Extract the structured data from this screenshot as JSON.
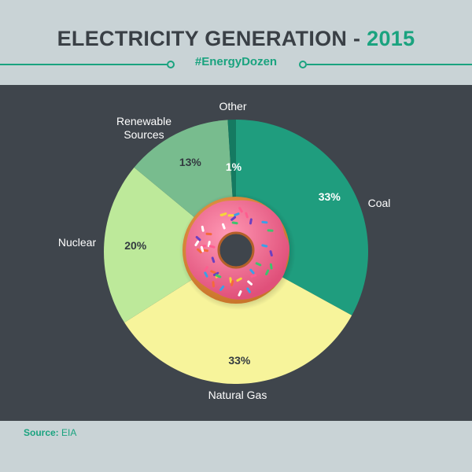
{
  "header": {
    "title_main": "ELECTRICITY GENERATION - ",
    "title_year": "2015",
    "hashtag": "#EnergyDozen"
  },
  "footer": {
    "source_label": "Source:",
    "source_value": "EIA"
  },
  "colors": {
    "page_background": "#c9d3d6",
    "panel_background": "#3f454c",
    "accent": "#1aa37f",
    "title_text": "#3a4046"
  },
  "chart_data": {
    "type": "pie",
    "categories": [
      "Coal",
      "Natural Gas",
      "Nuclear",
      "Renewable Sources",
      "Other"
    ],
    "values": [
      33,
      33,
      20,
      13,
      1
    ],
    "value_labels": [
      "33%",
      "33%",
      "20%",
      "13%",
      "1%"
    ],
    "colors": [
      "#1f9d7e",
      "#f7f49b",
      "#bde99a",
      "#78bc8e",
      "#157a61"
    ],
    "label_names": [
      "Coal",
      "Natural Gas",
      "Nuclear",
      "Renewable\nSources",
      "Other"
    ],
    "center_decoration": "donut-with-sprinkles",
    "start": "top",
    "direction": "clockwise"
  }
}
